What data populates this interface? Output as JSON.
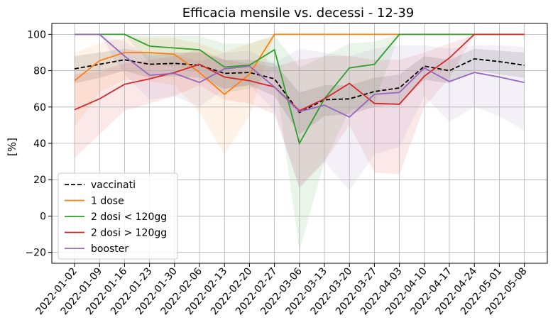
{
  "chart_data": {
    "type": "line",
    "title": "Efficacia mensile vs. decessi - 12-39",
    "xlabel": "",
    "ylabel": "[%]",
    "ylim": [
      -26,
      106
    ],
    "yticks": [
      -20,
      0,
      20,
      40,
      60,
      80,
      100
    ],
    "y_tick_labels": [
      "−20",
      "0",
      "20",
      "40",
      "60",
      "80",
      "100"
    ],
    "grid": true,
    "legend_position": "lower-left",
    "categories": [
      "2022-01-02",
      "2022-01-09",
      "2022-01-16",
      "2022-01-23",
      "2022-01-30",
      "2022-02-06",
      "2022-02-13",
      "2022-02-20",
      "2022-02-27",
      "2022-03-06",
      "2022-03-13",
      "2022-03-20",
      "2022-03-27",
      "2022-04-03",
      "2022-04-10",
      "2022-04-17",
      "2022-04-24",
      "2022-05-01",
      "2022-05-08"
    ],
    "series": [
      {
        "name": "vaccinati",
        "color": "#000000",
        "dash": true,
        "values": [
          81,
          83.5,
          86,
          83.5,
          84,
          83,
          78.5,
          79,
          75.5,
          57,
          64,
          64.5,
          68.5,
          70.5,
          82.5,
          80,
          86.5,
          85,
          83
        ],
        "lower": [
          73,
          76,
          80,
          76,
          77,
          76,
          70,
          72,
          66,
          45,
          55,
          56,
          60,
          62,
          75,
          73,
          80,
          78,
          76
        ],
        "upper": [
          88,
          90,
          92,
          90,
          90,
          90,
          86,
          86,
          84,
          68,
          72,
          72,
          76,
          78,
          88,
          86,
          92,
          91,
          90
        ]
      },
      {
        "name": "1 dose",
        "color": "#ff7f0e",
        "values": [
          74.5,
          85.5,
          90,
          90,
          89,
          79,
          67,
          78,
          100,
          100,
          100,
          100,
          100,
          100,
          100,
          100,
          100,
          100,
          100
        ],
        "lower": [
          49,
          68,
          75,
          74,
          72,
          57,
          34,
          55,
          100,
          100,
          100,
          100,
          100,
          100,
          100,
          100,
          100,
          100,
          100
        ],
        "upper": [
          90,
          95,
          98,
          98,
          98,
          95,
          90,
          95,
          100,
          100,
          100,
          100,
          100,
          100,
          100,
          100,
          100,
          100,
          100
        ]
      },
      {
        "name": "2 dosi < 120gg",
        "color": "#2ca02c",
        "values": [
          100,
          100,
          100,
          93.5,
          92.5,
          91.5,
          82,
          83,
          91.5,
          40,
          64.5,
          81.5,
          83.5,
          100,
          100,
          100,
          100,
          100,
          100
        ],
        "lower": [
          100,
          100,
          100,
          84,
          82,
          80,
          68,
          70,
          80,
          -19,
          30,
          58,
          62,
          100,
          100,
          100,
          100,
          100,
          100
        ],
        "upper": [
          100,
          100,
          100,
          99,
          99,
          99,
          95,
          95,
          99,
          82,
          88,
          95,
          96,
          100,
          100,
          100,
          100,
          100,
          100
        ]
      },
      {
        "name": "2 dosi > 120gg",
        "color": "#d62728",
        "values": [
          58.5,
          64.5,
          72.5,
          75.5,
          79,
          83.5,
          76.5,
          74.5,
          71,
          58,
          64.5,
          73,
          62,
          61.5,
          77,
          87,
          100,
          100,
          100
        ],
        "lower": [
          32,
          45,
          58,
          62,
          66,
          72,
          64,
          62,
          56,
          16,
          30,
          50,
          24,
          23,
          60,
          76,
          100,
          100,
          100
        ],
        "upper": [
          78,
          80,
          84,
          86,
          88,
          92,
          86,
          84,
          82,
          86,
          88,
          88,
          86,
          86,
          90,
          95,
          100,
          100,
          100
        ]
      },
      {
        "name": "booster",
        "color": "#9467bd",
        "values": [
          100,
          100,
          88,
          77.5,
          78.5,
          73.5,
          81,
          82.5,
          71,
          57.5,
          61,
          54.5,
          67,
          68,
          81.5,
          74,
          79,
          76.5,
          73.5
        ],
        "lower": [
          100,
          100,
          78,
          64,
          66,
          60,
          70,
          72,
          58,
          15,
          30,
          14,
          34,
          38,
          66,
          52,
          60,
          55,
          47
        ],
        "upper": [
          100,
          100,
          96,
          88,
          89,
          85,
          90,
          91,
          84,
          92,
          90,
          88,
          92,
          94,
          94,
          92,
          94,
          94,
          93
        ]
      }
    ]
  }
}
